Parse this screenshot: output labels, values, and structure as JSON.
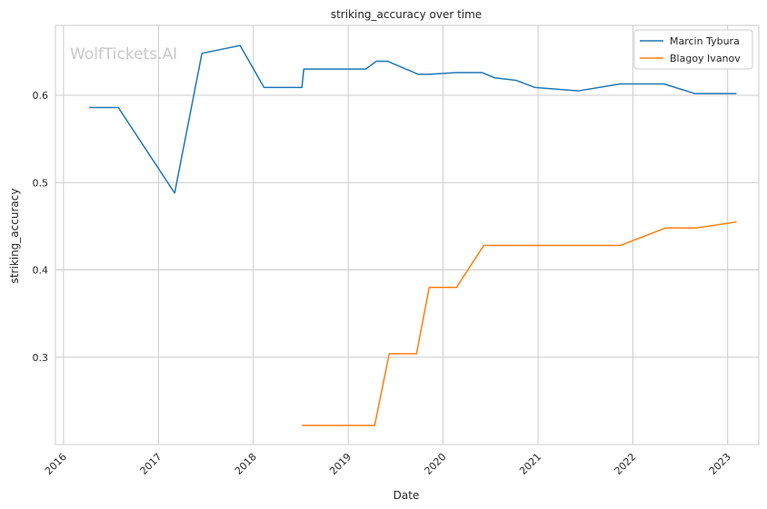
{
  "chart_data": {
    "type": "line",
    "title": "striking_accuracy over time",
    "xlabel": "Date",
    "ylabel": "striking_accuracy",
    "watermark": "WolfTickets.AI",
    "xlim": [
      "2015-12-01",
      "2023-05-01"
    ],
    "ylim": [
      0.2,
      0.68
    ],
    "x_ticks": [
      "2016",
      "2017",
      "2018",
      "2019",
      "2020",
      "2021",
      "2022",
      "2023"
    ],
    "y_ticks": [
      "0.3",
      "0.4",
      "0.5",
      "0.6"
    ],
    "grid": true,
    "legend_position": "top-right",
    "series": [
      {
        "name": "Marcin Tybura",
        "color": "#1f77b4",
        "points": [
          [
            "2016-04-09",
            0.586
          ],
          [
            "2016-07-30",
            0.586
          ],
          [
            "2017-03-04",
            0.488
          ],
          [
            "2017-06-17",
            0.648
          ],
          [
            "2017-11-11",
            0.657
          ],
          [
            "2018-02-11",
            0.609
          ],
          [
            "2018-07-07",
            0.609
          ],
          [
            "2018-07-14",
            0.63
          ],
          [
            "2019-03-09",
            0.63
          ],
          [
            "2019-04-20",
            0.639
          ],
          [
            "2019-06-01",
            0.639
          ],
          [
            "2019-09-28",
            0.624
          ],
          [
            "2019-11-09",
            0.624
          ],
          [
            "2020-02-22",
            0.626
          ],
          [
            "2020-05-30",
            0.626
          ],
          [
            "2020-07-18",
            0.62
          ],
          [
            "2020-10-10",
            0.617
          ],
          [
            "2020-12-19",
            0.609
          ],
          [
            "2021-06-05",
            0.605
          ],
          [
            "2021-11-13",
            0.613
          ],
          [
            "2022-05-01",
            0.613
          ],
          [
            "2022-08-27",
            0.602
          ],
          [
            "2023-02-04",
            0.602
          ]
        ]
      },
      {
        "name": "Blagoy Ivanov",
        "color": "#ff7f0e",
        "points": [
          [
            "2018-07-07",
            0.222
          ],
          [
            "2019-04-13",
            0.222
          ],
          [
            "2019-06-08",
            0.304
          ],
          [
            "2019-09-21",
            0.304
          ],
          [
            "2019-11-09",
            0.38
          ],
          [
            "2020-02-22",
            0.38
          ],
          [
            "2020-06-06",
            0.428
          ],
          [
            "2021-11-13",
            0.428
          ],
          [
            "2022-05-07",
            0.448
          ],
          [
            "2022-09-03",
            0.448
          ],
          [
            "2023-02-04",
            0.455
          ]
        ]
      }
    ]
  }
}
